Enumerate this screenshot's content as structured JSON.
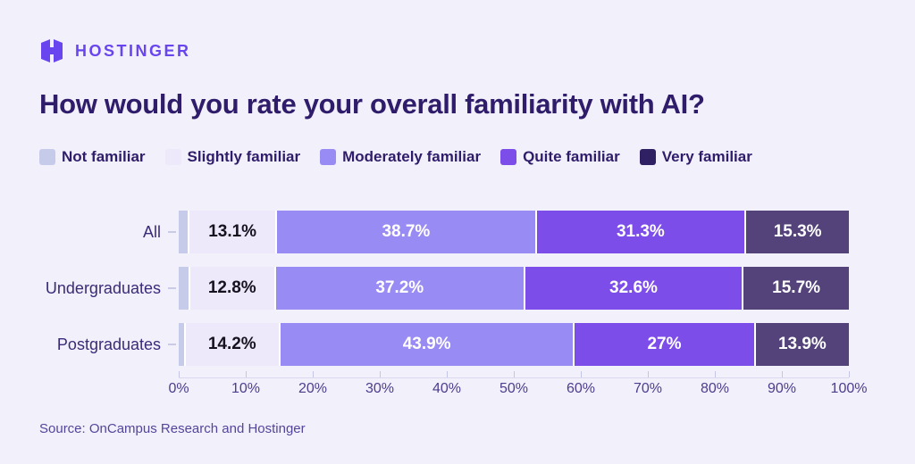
{
  "brand": {
    "name": "HOSTINGER",
    "color": "#6845EF"
  },
  "title": "How would you rate your overall familiarity with AI?",
  "source": "Source: OnCampus Research and Hostinger",
  "colors": {
    "background": "#F2F1FB",
    "title_text": "#2F1C6A",
    "row_label_text": "#3B2A7A",
    "axis_text": "#4D3D8D",
    "source_text": "#55449B"
  },
  "chart_data": {
    "type": "bar",
    "orientation": "horizontal",
    "stacked": true,
    "title": "How would you rate your overall familiarity with AI?",
    "categories": [
      "All",
      "Undergraduates",
      "Postgraduates"
    ],
    "series": [
      {
        "name": "Not familiar",
        "color": "#C6CBE9",
        "legend_color": "#C6CBE9",
        "values": [
          1.6,
          1.7,
          1.0
        ],
        "display_labels": [
          "",
          "",
          ""
        ],
        "label_color": "#17121F"
      },
      {
        "name": "Slightly familiar",
        "color": "#EDE9FB",
        "legend_color": "#EDE9FB",
        "values": [
          13.1,
          12.8,
          14.2
        ],
        "display_labels": [
          "13.1%",
          "12.8%",
          "14.2%"
        ],
        "label_color": "#17121F"
      },
      {
        "name": "Moderately familiar",
        "color": "#998BF4",
        "legend_color": "#998BF4",
        "values": [
          38.7,
          37.2,
          43.9
        ],
        "display_labels": [
          "38.7%",
          "37.2%",
          "43.9%"
        ],
        "label_color": "#FFFFFF"
      },
      {
        "name": "Quite familiar",
        "color": "#7C4DE9",
        "legend_color": "#7C4DE9",
        "values": [
          31.3,
          32.6,
          27
        ],
        "display_labels": [
          "31.3%",
          "32.6%",
          "27%"
        ],
        "label_color": "#FFFFFF"
      },
      {
        "name": "Very familiar",
        "color": "#54427B",
        "legend_color": "#2F2063",
        "values": [
          15.3,
          15.7,
          13.9
        ],
        "display_labels": [
          "15.3%",
          "15.7%",
          "13.9%"
        ],
        "label_color": "#FFFFFF"
      }
    ],
    "x_ticks": [
      "0%",
      "10%",
      "20%",
      "30%",
      "40%",
      "50%",
      "60%",
      "70%",
      "80%",
      "90%",
      "100%"
    ],
    "xlim": [
      0,
      100
    ],
    "legend_position": "top",
    "grid": false
  }
}
